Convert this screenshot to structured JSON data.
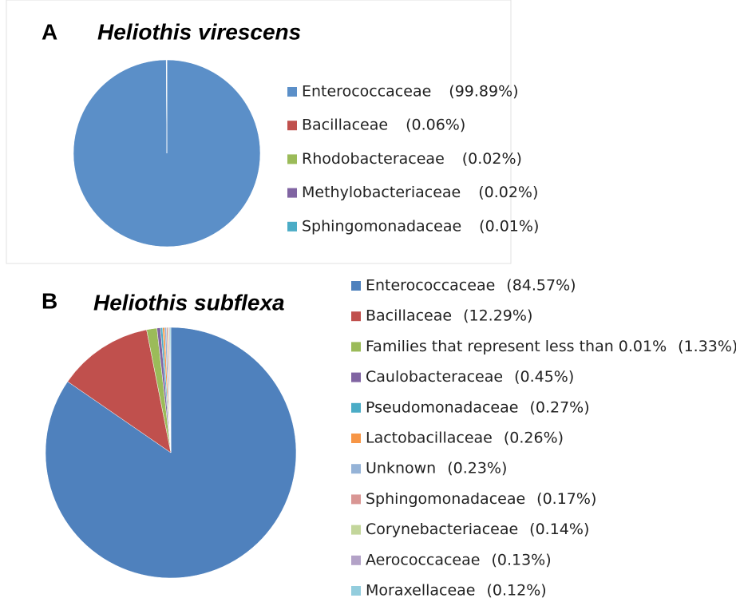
{
  "chart_data": [
    {
      "type": "pie",
      "panel_label": "A",
      "title": "Heliothis virescens",
      "categories": [
        "Enterococcaceae",
        "Bacillaceae",
        "Rhodobacteraceae",
        "Methylobacteriaceae",
        "Sphingomonadaceae"
      ],
      "values": [
        99.89,
        0.06,
        0.02,
        0.02,
        0.01
      ],
      "value_labels": [
        "(99.89%)",
        "(0.06%)",
        "(0.02%)",
        "(0.02%)",
        "(0.01%)"
      ],
      "colors": [
        "#5b8fc8",
        "#c0504d",
        "#9bbb59",
        "#8064a2",
        "#4bacc6"
      ]
    },
    {
      "type": "pie",
      "panel_label": "B",
      "title": "Heliothis subflexa",
      "categories": [
        "Enterococcaceae",
        "Bacillaceae",
        "Families that represent less than 0.01%",
        "Caulobacteraceae",
        "Pseudomonadaceae",
        "Lactobacillaceae",
        "Unknown",
        "Sphingomonadaceae",
        "Corynebacteriaceae",
        "Aerococcaceae",
        "Moraxellaceae"
      ],
      "values": [
        84.57,
        12.29,
        1.33,
        0.45,
        0.27,
        0.26,
        0.23,
        0.17,
        0.14,
        0.13,
        0.12
      ],
      "value_labels": [
        "(84.57%)",
        "(12.29%)",
        "(1.33%)",
        "(0.45%)",
        "(0.27%)",
        "(0.26%)",
        "(0.23%)",
        "(0.17%)",
        "(0.14%)",
        "(0.13%)",
        "(0.12%)"
      ],
      "colors": [
        "#4f81bd",
        "#c0504d",
        "#9bbb59",
        "#8064a2",
        "#4bacc6",
        "#f79646",
        "#95b3d7",
        "#d99694",
        "#c3d69b",
        "#b3a2c7",
        "#93cddd"
      ]
    }
  ]
}
